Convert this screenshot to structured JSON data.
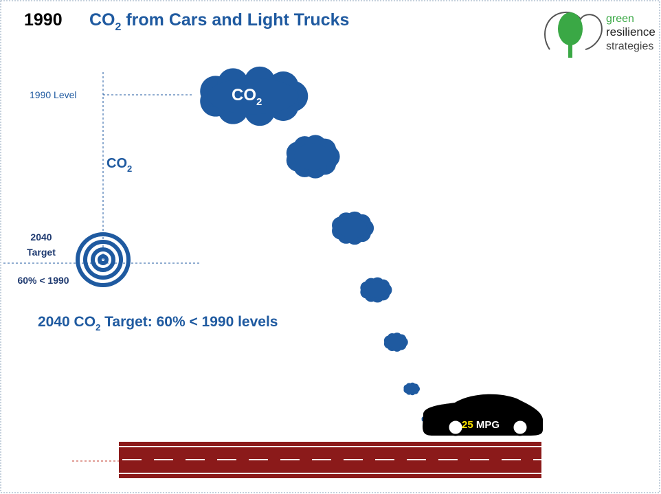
{
  "header": {
    "year": "1990",
    "title": {
      "main": "CO",
      "sub": "2",
      "rest": " from Cars and Light Trucks"
    }
  },
  "logo": {
    "lines": [
      "green",
      "resilience",
      "strategies"
    ]
  },
  "axis": {
    "top_label": "1990 Level",
    "label": {
      "main": "CO",
      "sub": "2"
    }
  },
  "target": {
    "lines": [
      "2040",
      "Target"
    ],
    "note": "60% < 1990"
  },
  "statement": {
    "start": "2040 CO",
    "sub": "2",
    "rest": " Target: 60% < 1990 levels"
  },
  "cloud": {
    "main": "CO",
    "sub": "2"
  },
  "car": {
    "mpg_value": "25",
    "unit": "MPG"
  }
}
